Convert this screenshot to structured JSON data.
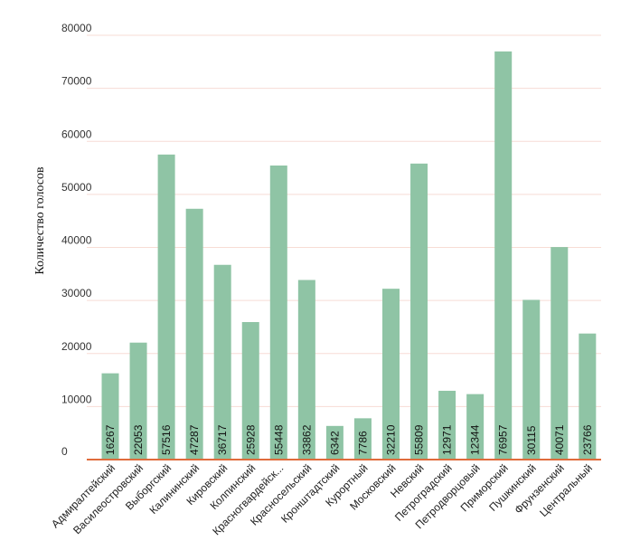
{
  "chart_data": {
    "type": "bar",
    "title": "",
    "xlabel": "",
    "ylabel": "Количество голосов",
    "ylim": [
      0,
      80000
    ],
    "yticks": [
      0,
      10000,
      20000,
      30000,
      40000,
      50000,
      60000,
      70000,
      80000
    ],
    "grid": true,
    "categories": [
      "Адмиралтейский",
      "Василеостровский",
      "Выборгский",
      "Калининский",
      "Кировский",
      "Колпинский",
      "Красногвардейск...",
      "Красносельский",
      "Кронштадтский",
      "Курортный",
      "Московский",
      "Невский",
      "Петроградский",
      "Петродворцовый",
      "Приморский",
      "Пушкинский",
      "Фрунзенский",
      "Центральный"
    ],
    "values": [
      16267,
      22053,
      57516,
      47287,
      36717,
      25928,
      55448,
      33862,
      6342,
      7786,
      32210,
      55809,
      12971,
      12344,
      76957,
      30115,
      40071,
      23766
    ],
    "colors": {
      "bar": "#8fc4a5",
      "gridline": "#f7dcd5",
      "baseline": "#e06c3c"
    }
  }
}
